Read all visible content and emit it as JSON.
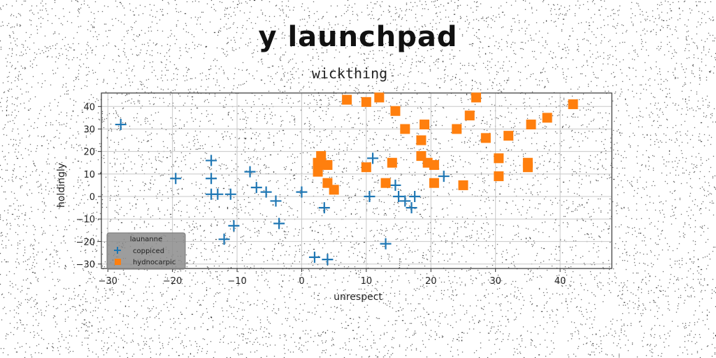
{
  "suptitle": "y launchpad",
  "chart_data": {
    "type": "scatter",
    "title": "wickthing",
    "xlabel": "unrespect",
    "ylabel": "holdingly",
    "xlim": [
      -31,
      48
    ],
    "ylim": [
      -32,
      46
    ],
    "xticks": [
      -30,
      -20,
      -10,
      0,
      10,
      20,
      30,
      40
    ],
    "yticks": [
      -30,
      -20,
      -10,
      0,
      10,
      20,
      30,
      40
    ],
    "grid": true,
    "legend": {
      "title": "launanne",
      "placement": "lower-left",
      "entries": [
        "coppiced",
        "hydnocarpic"
      ]
    },
    "series": [
      {
        "name": "coppiced",
        "marker": "plus",
        "color": "#1f77b4",
        "points": [
          [
            -28,
            32
          ],
          [
            -19.5,
            8
          ],
          [
            -14,
            16
          ],
          [
            -14,
            8
          ],
          [
            -14,
            1
          ],
          [
            -13,
            1
          ],
          [
            -11,
            1
          ],
          [
            -10.5,
            -13
          ],
          [
            -12,
            -19
          ],
          [
            -8,
            11
          ],
          [
            -7,
            4
          ],
          [
            -5.5,
            2
          ],
          [
            -4,
            -2
          ],
          [
            -3.5,
            -12
          ],
          [
            0,
            2
          ],
          [
            3.5,
            -5
          ],
          [
            2,
            -27
          ],
          [
            4,
            -28
          ],
          [
            11,
            17
          ],
          [
            10.5,
            0
          ],
          [
            13,
            -21
          ],
          [
            14.5,
            5
          ],
          [
            15,
            0
          ],
          [
            16,
            -2
          ],
          [
            17,
            -5
          ],
          [
            17.5,
            0
          ],
          [
            22,
            9
          ]
        ]
      },
      {
        "name": "hydnocarpic",
        "marker": "square",
        "color": "#ff7f0e",
        "points": [
          [
            7,
            43
          ],
          [
            10,
            42
          ],
          [
            12,
            44
          ],
          [
            14.5,
            38
          ],
          [
            16,
            30
          ],
          [
            19,
            32
          ],
          [
            18.5,
            25
          ],
          [
            18.5,
            18
          ],
          [
            19.5,
            15
          ],
          [
            20.5,
            14
          ],
          [
            20.5,
            6
          ],
          [
            24,
            30
          ],
          [
            26,
            36
          ],
          [
            27,
            44
          ],
          [
            28.5,
            26
          ],
          [
            30.5,
            17
          ],
          [
            30.5,
            9
          ],
          [
            32,
            27
          ],
          [
            35.5,
            32
          ],
          [
            38,
            35
          ],
          [
            42,
            41
          ],
          [
            35,
            15
          ],
          [
            35,
            13
          ],
          [
            25,
            5
          ],
          [
            13,
            6
          ],
          [
            10,
            13
          ],
          [
            14,
            15
          ],
          [
            3,
            18
          ],
          [
            2.5,
            15
          ],
          [
            2.5,
            11
          ],
          [
            4,
            14
          ],
          [
            4,
            6
          ],
          [
            5,
            3
          ]
        ]
      }
    ]
  }
}
